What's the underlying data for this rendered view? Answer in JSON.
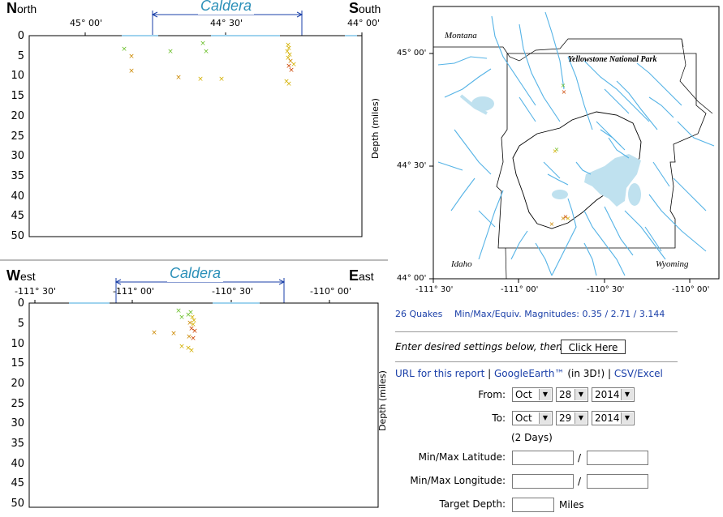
{
  "ns_plot": {
    "left_dir_initial": "N",
    "left_dir_rest": "orth",
    "right_dir_initial": "S",
    "right_dir_rest": "outh",
    "caldera_label": "Caldera",
    "x_ticks": [
      "45° 00'",
      "44° 30'",
      "44° 00'"
    ],
    "y_ticks": [
      "0",
      "5",
      "10",
      "15",
      "20",
      "25",
      "30",
      "35",
      "40",
      "45",
      "50"
    ],
    "y_axis_label": "Depth (miles)"
  },
  "we_plot": {
    "left_dir_initial": "W",
    "left_dir_rest": "est",
    "right_dir_initial": "E",
    "right_dir_rest": "ast",
    "caldera_label": "Caldera",
    "x_ticks": [
      "-111° 30'",
      "-111° 00'",
      "-110° 30'",
      "-110° 00'"
    ],
    "y_ticks": [
      "0",
      "5",
      "10",
      "15",
      "20",
      "25",
      "30",
      "35",
      "40",
      "45",
      "50"
    ],
    "y_axis_label": "Depth (miles)"
  },
  "map": {
    "labels": {
      "montana": "Montana",
      "park": "Yellowstone National Park",
      "idaho": "Idaho",
      "wyoming": "Wyoming"
    },
    "lat_ticks": [
      "45° 00'",
      "44° 30'",
      "44° 00'"
    ],
    "lon_ticks": [
      "-111° 30'",
      "-111° 00'",
      "-110° 30'",
      "-110° 00'"
    ]
  },
  "summary": {
    "count_text": "26 Quakes",
    "magnitudes_text": "Min/Max/Equiv. Magnitudes: 0.35 / 2.71 / 3.144"
  },
  "settings": {
    "instruction": "Enter desired settings below, then",
    "button_label": "Click Here",
    "link_url": "URL for this report",
    "link_ge": "GoogleEarth™",
    "ge_suffix": "(in 3D!)",
    "link_csv": "CSV/Excel",
    "from_label": "From:",
    "from_month": "Oct",
    "from_day": "28",
    "from_year": "2014",
    "to_label": "To:",
    "to_month": "Oct",
    "to_day": "29",
    "to_year": "2014",
    "duration": "(2 Days)",
    "lat_label": "Min/Max Latitude:",
    "lon_label": "Min/Max Longitude:",
    "slash": "/",
    "depth_label": "Target Depth:",
    "depth_unit": "Miles"
  },
  "colors": {
    "caldera": "#2a8fb8",
    "water": "#55b3e6",
    "quake_shallow": "#d4b000",
    "quake_mid": "#6bbf2a",
    "quake_deep": "#cc4400",
    "link": "#1a3fa8"
  }
}
